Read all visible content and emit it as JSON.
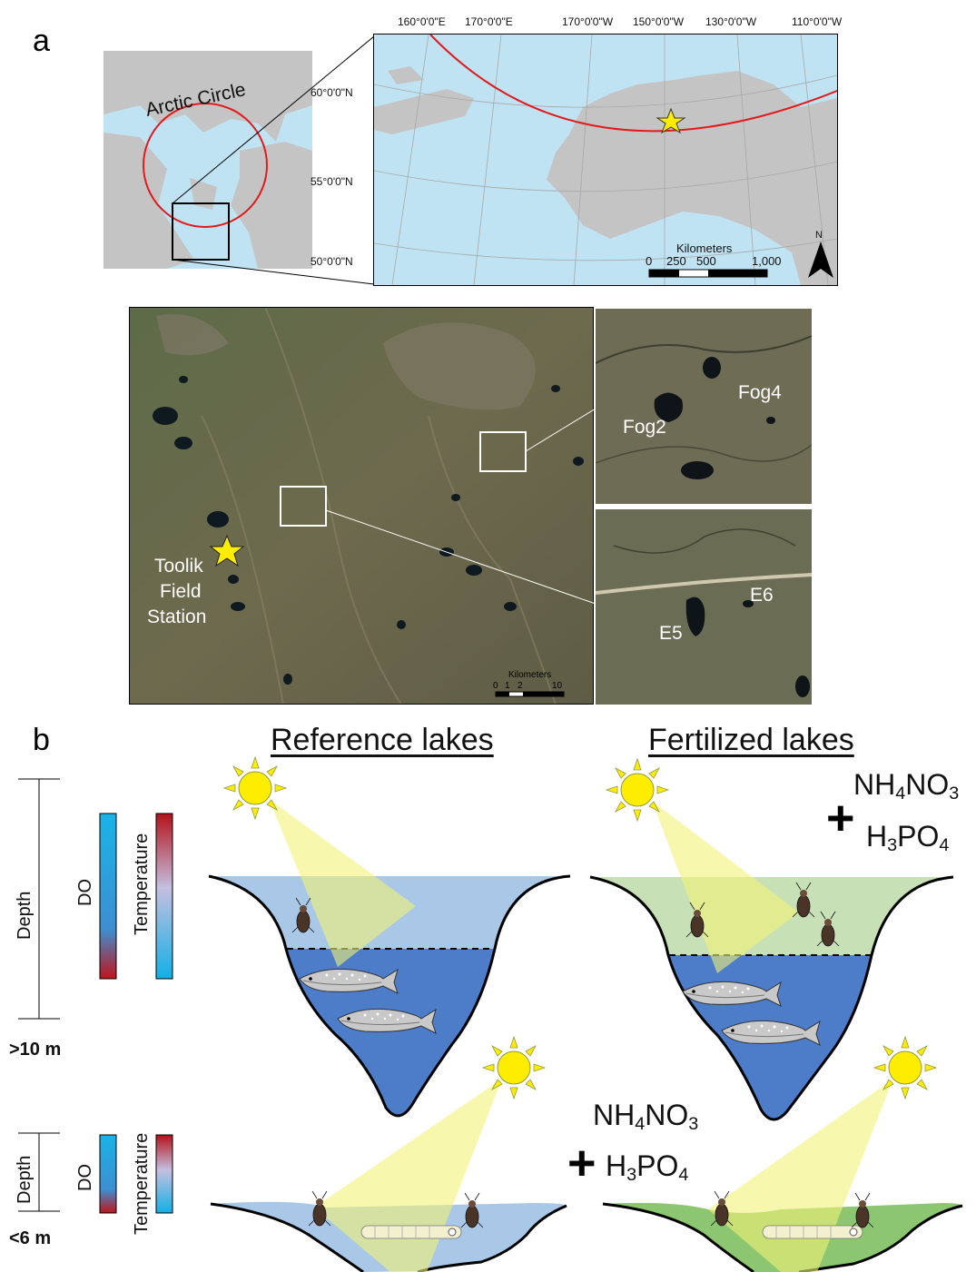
{
  "panel_a": {
    "letter": "a",
    "inset_label": "Arctic Circle",
    "lon_labels": [
      "160°0'0\"E",
      "170°0'0\"E",
      "170°0'0\"W",
      "150°0'0\"W",
      "130°0'0\"W",
      "110°0'0\"W"
    ],
    "lat_labels": [
      "60°0'0\"N",
      "55°0'0\"N",
      "50°0'0\"N"
    ],
    "scale_title": "Kilometers",
    "scale_ticks": [
      "0",
      "250",
      "500",
      "1,000"
    ],
    "north": "N",
    "site_label_line1": "Toolik",
    "site_label_line2": "Field",
    "site_label_line3": "Station",
    "sat_scale_title": "Kilometers",
    "sat_scale_ticks": [
      "0",
      "1",
      "2",
      "10"
    ],
    "lakes_top": [
      "Fog2",
      "Fog4"
    ],
    "lakes_bottom": [
      "E5",
      "E6"
    ]
  },
  "panel_b": {
    "letter": "b",
    "reference_title": "Reference lakes",
    "fertilized_title": "Fertilized lakes",
    "deep": {
      "depth_label": "Depth",
      "do_label": "DO",
      "temp_label": "Temperature",
      "depth_value": ">10 m"
    },
    "shallow": {
      "depth_label": "Depth",
      "do_label": "DO",
      "temp_label": "Temperature",
      "depth_value": "<6 m"
    },
    "fertilizer_1": "NH",
    "fertilizer_1_sub": "4",
    "fertilizer_1_mid": "NO",
    "fertilizer_1_sub2": "3",
    "fertilizer_2": "H",
    "fertilizer_2_sub": "3",
    "fertilizer_2_mid": "PO",
    "fertilizer_2_sub2": "4",
    "plus": "+"
  },
  "colors": {
    "ocean": "#bfe3f3",
    "land": "#c4c4c4",
    "arctic_circle": "#e31a1c",
    "star": "#ffed00",
    "epilimnion_ref": "#a9c7e6",
    "epilimnion_fert": "#c7e0b6",
    "hypolimnion": "#4d7cc9",
    "light_cone": "#f2f277"
  }
}
